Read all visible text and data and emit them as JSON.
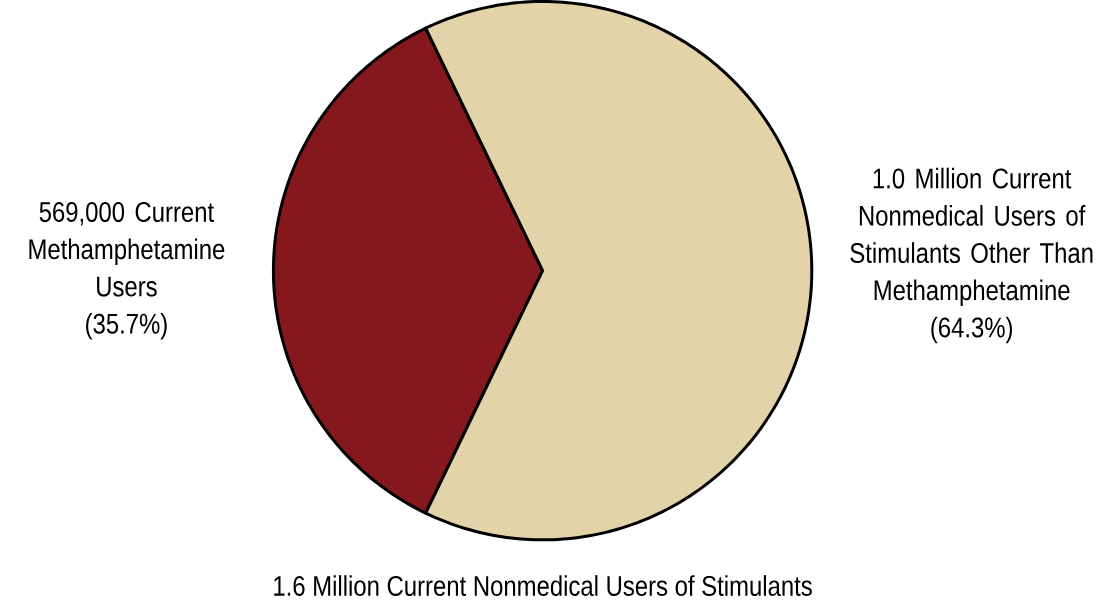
{
  "chart_data": {
    "type": "pie",
    "title": "1.6 Million Current Nonmedical Users of Stimulants",
    "categories": [
      "569,000 Current Methamphetamine Users",
      "1.0 Million Current Nonmedical Users of Stimulants Other Than Methamphetamine"
    ],
    "values": [
      35.7,
      64.3
    ],
    "value_labels": [
      "(35.7%)",
      "(64.3%)"
    ],
    "colors": [
      "#84181c",
      "#e3d3a8"
    ]
  }
}
